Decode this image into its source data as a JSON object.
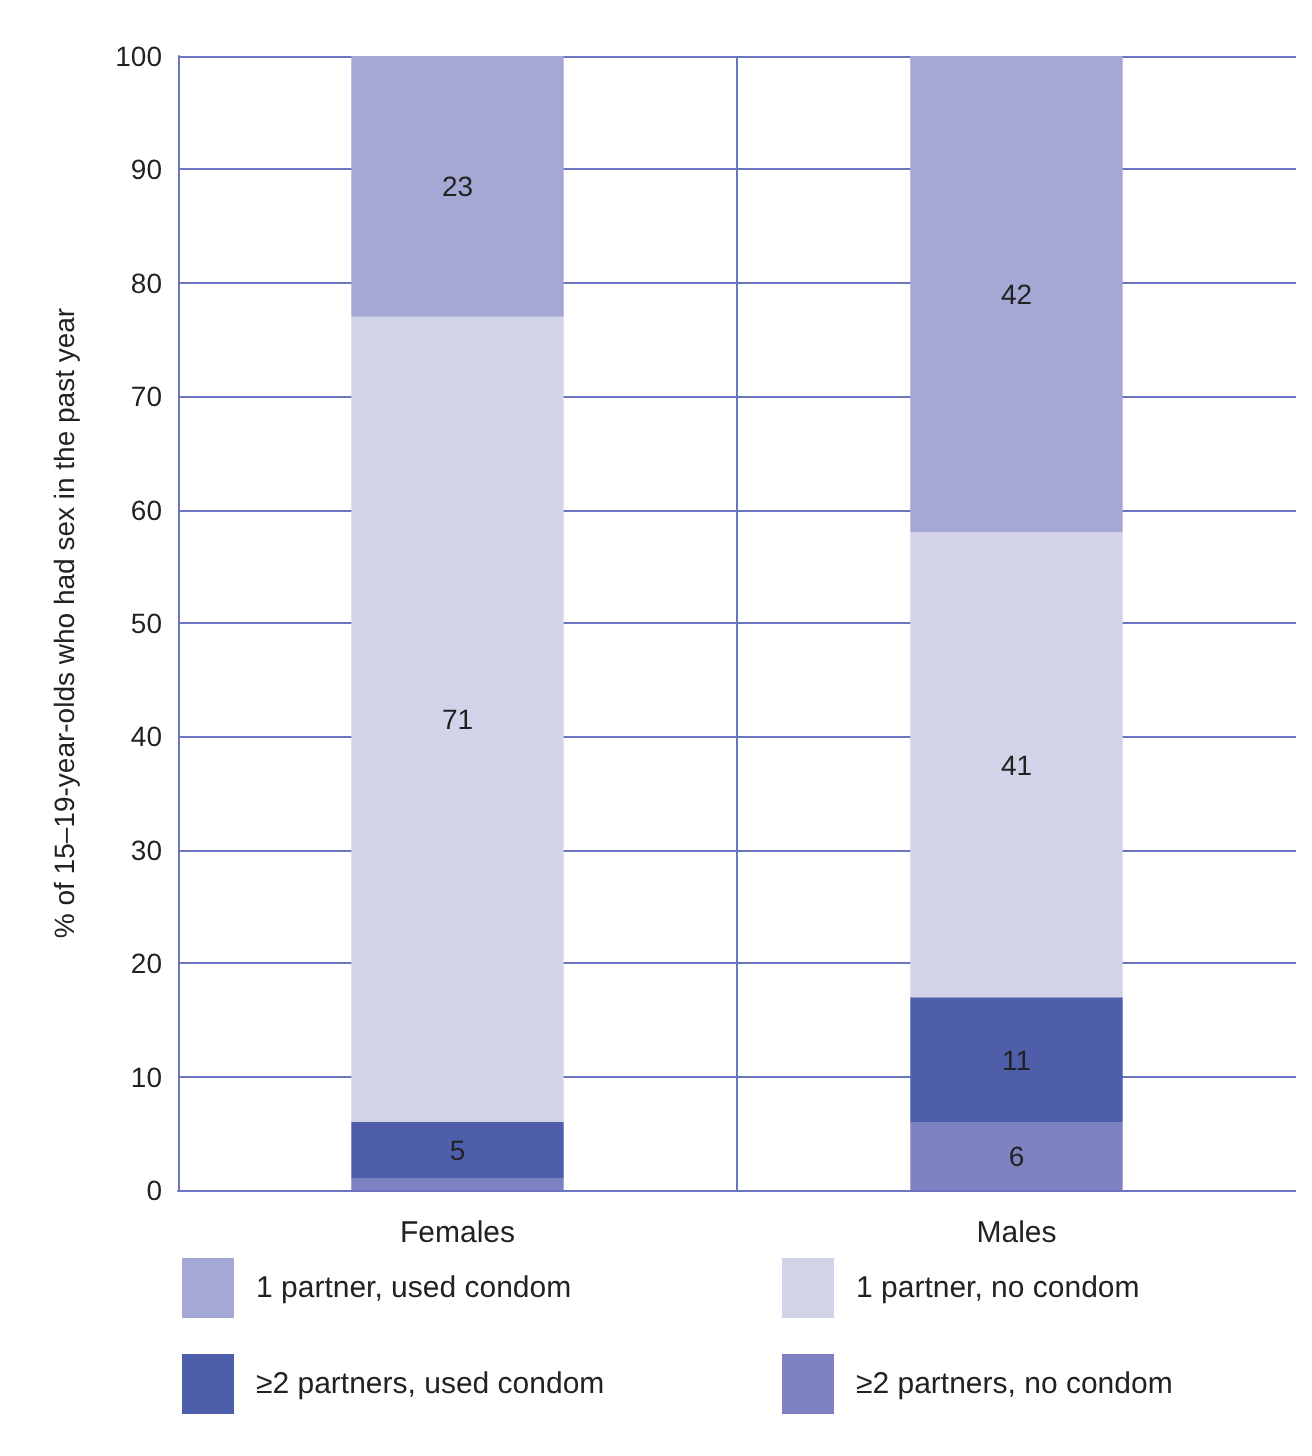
{
  "chart_data": {
    "type": "bar",
    "stacked": true,
    "ylabel": "% of 15–19-year-olds who had sex in the past year",
    "categories": [
      "Females",
      "Males"
    ],
    "series": [
      {
        "name": "≥2 partners, no condom",
        "color": "#7f82c1",
        "values": [
          1,
          6
        ],
        "value_labels": [
          null,
          "6"
        ]
      },
      {
        "name": "≥2 partners, used condom",
        "color": "#4f5eab",
        "values": [
          5,
          11
        ],
        "value_labels": [
          "5",
          "11"
        ]
      },
      {
        "name": "1 partner, no condom",
        "color": "#d2d3e8",
        "values": [
          71,
          41
        ],
        "value_labels": [
          "71",
          "41"
        ]
      },
      {
        "name": "1 partner, used condom",
        "color": "#a5a7d4",
        "values": [
          23,
          42
        ],
        "value_labels": [
          "23",
          "42"
        ]
      }
    ],
    "ylim": [
      0,
      100
    ],
    "yticks": [
      0,
      10,
      20,
      30,
      40,
      50,
      60,
      70,
      80,
      90,
      100
    ],
    "grid": true,
    "legend": "bottom"
  }
}
